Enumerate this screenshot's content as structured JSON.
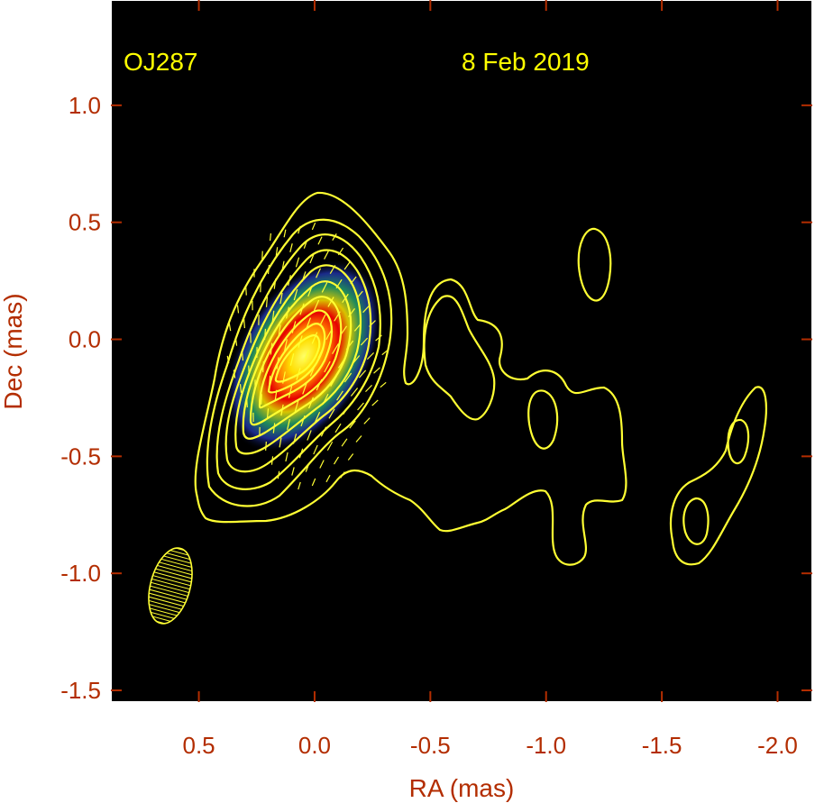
{
  "chart_data": {
    "type": "contour",
    "source_label": "OJ287",
    "date_label": "8 Feb 2019",
    "xlabel": "RA (mas)",
    "ylabel": "Dec (mas)",
    "xlim": [
      0.88,
      -2.15
    ],
    "ylim": [
      -1.55,
      1.45
    ],
    "x_ticks": [
      0.5,
      0.0,
      -0.5,
      -1.0,
      -1.5,
      -2.0
    ],
    "x_tick_labels": [
      "0.5",
      "0.0",
      "-0.5",
      "-1.0",
      "-1.5",
      "-2.0"
    ],
    "y_ticks": [
      1.0,
      0.5,
      0.0,
      -0.5,
      -1.0,
      -1.5
    ],
    "y_tick_labels": [
      "1.0",
      "0.5",
      "0.0",
      "-0.5",
      "-1.0",
      "-1.5"
    ],
    "core_position": [
      0.03,
      -0.07
    ],
    "beam": {
      "ra": 0.62,
      "dec": -1.05,
      "major_mas": 0.32,
      "minor_mas": 0.17,
      "pa_deg": -15
    },
    "colors": {
      "background": "#000000",
      "frame": "#ffffff",
      "tick_label": "#b32d00",
      "axis_title": "#b32d00",
      "annotation": "#ffff00",
      "contour": "#ffff33",
      "colormap": [
        "#1a2a8a",
        "#1f8a5a",
        "#ffdd00",
        "#ff7a00",
        "#e60000",
        "#ffff66"
      ]
    }
  }
}
